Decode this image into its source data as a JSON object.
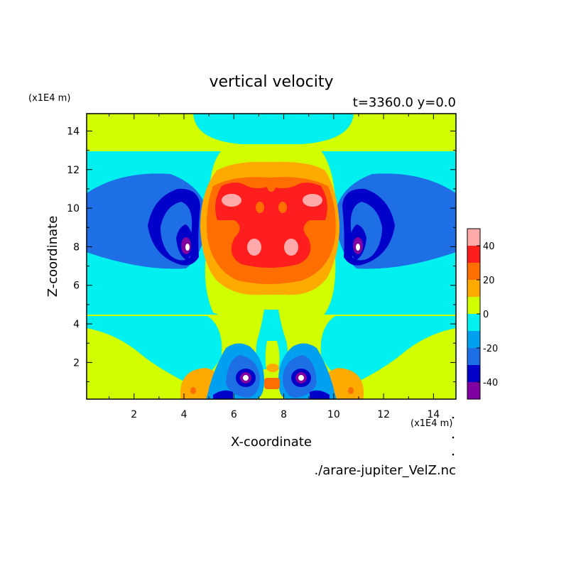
{
  "chart_data": {
    "type": "heatmap",
    "title": "vertical velocity",
    "subtitle": "t=3360.0 y=0.0",
    "xlabel": "X-coordinate",
    "ylabel": "Z-coordinate",
    "x_unit": "(x1E4 m)",
    "z_unit": "(x1E4 m)",
    "source_file": "./arare-jupiter_VelZ.nc",
    "xlim": [
      0.1,
      14.9
    ],
    "ylim": [
      0.1,
      14.9
    ],
    "x_ticks": [
      "2",
      "4",
      "6",
      "8",
      "10",
      "12",
      "14"
    ],
    "y_ticks": [
      "2",
      "4",
      "6",
      "8",
      "10",
      "12",
      "14"
    ],
    "legend_ticks": [
      "40",
      "20",
      "0",
      "-20",
      "-40"
    ],
    "levels": [
      -50,
      -40,
      -30,
      -20,
      -10,
      0,
      10,
      20,
      30,
      40,
      50
    ],
    "level_colors": [
      "#8000a0",
      "#0000c8",
      "#1e6ee6",
      "#00a0f0",
      "#00f0f0",
      "#d2ff00",
      "#ffaa00",
      "#ff6e00",
      "#ff1e1e",
      "#ffaaaa"
    ],
    "features": [
      {
        "kind": "background_band",
        "z_range": [
          13.0,
          14.9
        ],
        "value": 5
      },
      {
        "kind": "background_band",
        "z_range": [
          4.5,
          13.0
        ],
        "value": -5
      },
      {
        "kind": "background_band",
        "z_range": [
          0.1,
          4.5
        ],
        "value": 5
      },
      {
        "kind": "downdraft_core",
        "x": 4.1,
        "z": 8.1,
        "min": -50
      },
      {
        "kind": "downdraft_core",
        "x": 11.0,
        "z": 8.1,
        "min": -50
      },
      {
        "kind": "downdraft_core",
        "x": 6.5,
        "z": 1.2,
        "min": -50
      },
      {
        "kind": "downdraft_core",
        "x": 8.7,
        "z": 1.2,
        "min": -50
      },
      {
        "kind": "updraft_core",
        "x": 7.5,
        "z": 8.5,
        "max": 45
      }
    ]
  }
}
